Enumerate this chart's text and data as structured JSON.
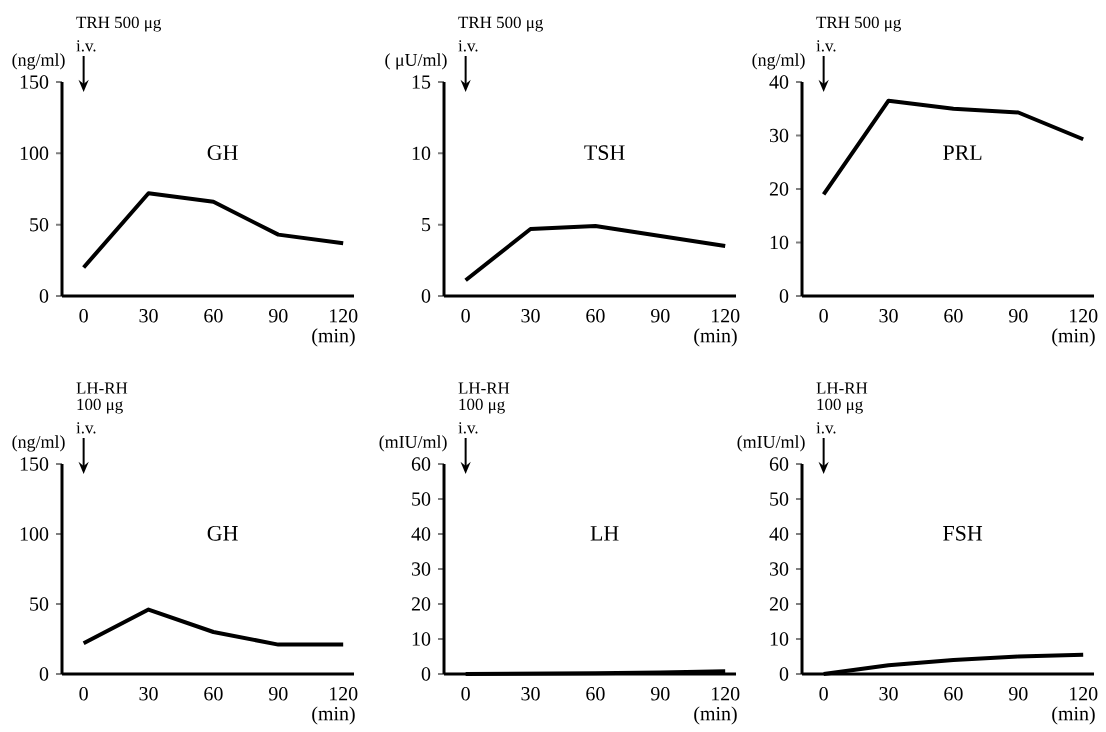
{
  "chart_data": [
    {
      "type": "line",
      "title": "GH",
      "ylabel": "(ng/ml)",
      "xlabel": "(min)",
      "annotations": [
        "TRH 500 μg",
        "i.v."
      ],
      "x": [
        0,
        30,
        60,
        90,
        120
      ],
      "values": [
        20,
        72,
        66,
        43,
        37
      ],
      "color": "#000000",
      "xlim": [
        -10,
        125
      ],
      "ylim": [
        0,
        150
      ],
      "xticks": [
        0,
        30,
        60,
        90,
        120
      ],
      "yticks": [
        0,
        50,
        100,
        150
      ],
      "marker": "none"
    },
    {
      "type": "line",
      "title": "TSH",
      "ylabel": "( μU/ml)",
      "xlabel": "(min)",
      "annotations": [
        "TRH 500 μg",
        "i.v."
      ],
      "x": [
        0,
        30,
        60,
        90,
        120
      ],
      "values": [
        1.1,
        4.7,
        4.9,
        4.2,
        3.5
      ],
      "color": "#000000",
      "xlim": [
        -10,
        125
      ],
      "ylim": [
        0,
        15
      ],
      "xticks": [
        0,
        30,
        60,
        90,
        120
      ],
      "yticks": [
        0,
        5,
        10,
        15
      ],
      "marker": "none"
    },
    {
      "type": "line",
      "title": "PRL",
      "ylabel": "(ng/ml)",
      "xlabel": "(min)",
      "annotations": [
        "TRH 500 μg",
        "i.v."
      ],
      "x": [
        0,
        30,
        60,
        90,
        120
      ],
      "values": [
        19,
        36.5,
        35,
        34.3,
        29.3
      ],
      "color": "#000000",
      "xlim": [
        -10,
        125
      ],
      "ylim": [
        0,
        40
      ],
      "xticks": [
        0,
        30,
        60,
        90,
        120
      ],
      "yticks": [
        0,
        10,
        20,
        30,
        40
      ],
      "marker": "none"
    },
    {
      "type": "line",
      "title": "GH",
      "ylabel": "(ng/ml)",
      "xlabel": "(min)",
      "annotations": [
        "LH-RH",
        "100 μg",
        "i.v."
      ],
      "x": [
        0,
        30,
        60,
        90,
        120
      ],
      "values": [
        22,
        46,
        30,
        21,
        21
      ],
      "color": "#000000",
      "xlim": [
        -10,
        125
      ],
      "ylim": [
        0,
        150
      ],
      "xticks": [
        0,
        30,
        60,
        90,
        120
      ],
      "yticks": [
        0,
        50,
        100,
        150
      ],
      "marker": "none"
    },
    {
      "type": "line",
      "title": "LH",
      "ylabel": "(mIU/ml)",
      "xlabel": "(min)",
      "annotations": [
        "LH-RH",
        "100 μg",
        "i.v."
      ],
      "x": [
        0,
        30,
        60,
        90,
        120
      ],
      "values": [
        0,
        0.1,
        0.2,
        0.4,
        0.8
      ],
      "color": "#000000",
      "xlim": [
        -10,
        125
      ],
      "ylim": [
        0,
        60
      ],
      "xticks": [
        0,
        30,
        60,
        90,
        120
      ],
      "yticks": [
        0,
        10,
        20,
        30,
        40,
        50,
        60
      ],
      "marker": "none"
    },
    {
      "type": "line",
      "title": "FSH",
      "ylabel": "(mIU/ml)",
      "xlabel": "(min)",
      "annotations": [
        "LH-RH",
        "100 μg",
        "i.v."
      ],
      "x": [
        0,
        30,
        60,
        90,
        120
      ],
      "values": [
        0,
        2.5,
        4,
        5,
        5.5
      ],
      "color": "#000000",
      "xlim": [
        -10,
        125
      ],
      "ylim": [
        0,
        60
      ],
      "xticks": [
        0,
        30,
        60,
        90,
        120
      ],
      "yticks": [
        0,
        10,
        20,
        30,
        40,
        50,
        60
      ],
      "marker": "none"
    }
  ]
}
